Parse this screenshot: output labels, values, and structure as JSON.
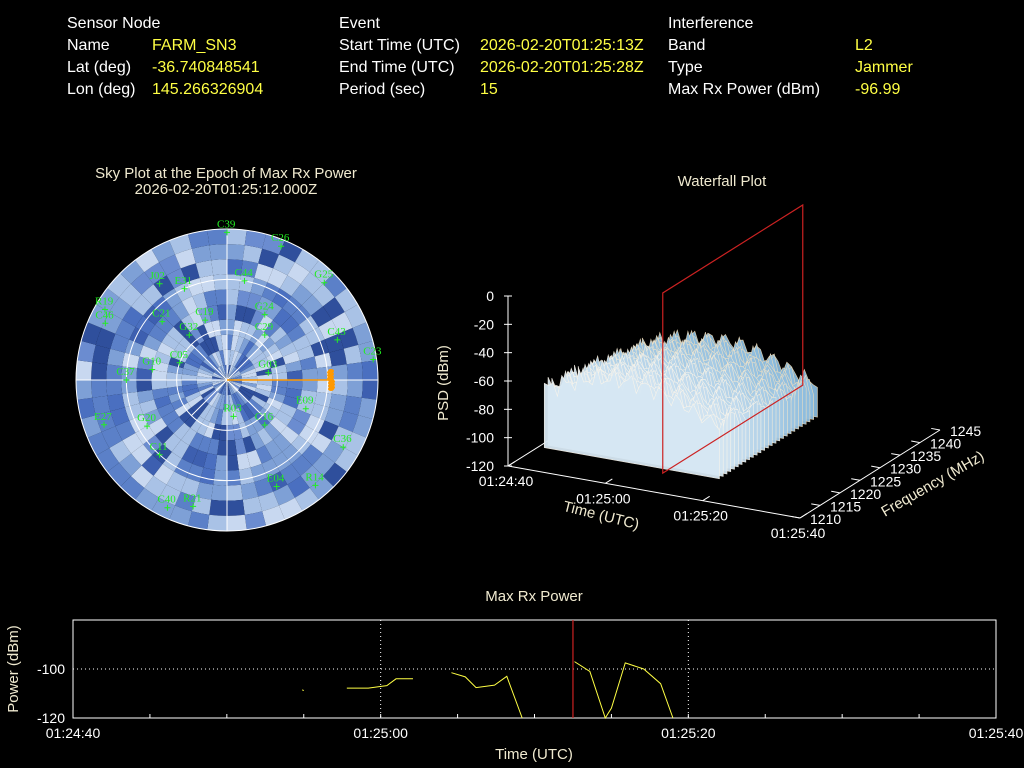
{
  "sensor": {
    "header": "Sensor Node",
    "name_label": "Name",
    "name": "FARM_SN3",
    "lat_label": "Lat (deg)",
    "lat": "-36.740848541",
    "lon_label": "Lon (deg)",
    "lon": "145.266326904"
  },
  "event": {
    "header": "Event",
    "start_label": "Start Time (UTC)",
    "start": "2026-02-20T01:25:13Z",
    "end_label": "End Time (UTC)",
    "end": "2026-02-20T01:25:28Z",
    "period_label": "Period (sec)",
    "period": "15"
  },
  "interference": {
    "header": "Interference",
    "band_label": "Band",
    "band": "L2",
    "type_label": "Type",
    "type": "Jammer",
    "power_label": "Max Rx Power (dBm)",
    "power": "-96.99"
  },
  "colors": {
    "value": "#ffff44",
    "satellite": "#22ee22",
    "marker": "#cc2222",
    "power_line": "#ffff44",
    "jammer": "#ff9900"
  },
  "chart_data": [
    {
      "type": "scatter",
      "title": "Sky Plot at the Epoch of Max Rx Power",
      "subtitle": "2026-02-20T01:25:12.000Z",
      "satellites": [
        {
          "id": "C39",
          "az": 0,
          "el": 2
        },
        {
          "id": "C26",
          "az": 22,
          "el": 4
        },
        {
          "id": "G25",
          "az": 45,
          "el": 8
        },
        {
          "id": "C23",
          "az": 82,
          "el": 2
        },
        {
          "id": "C43",
          "az": 70,
          "el": 20
        },
        {
          "id": "C36",
          "az": 120,
          "el": 10
        },
        {
          "id": "R14",
          "az": 140,
          "el": 8
        },
        {
          "id": "E04",
          "az": 155,
          "el": 20
        },
        {
          "id": "R21",
          "az": 195,
          "el": 12
        },
        {
          "id": "C40",
          "az": 205,
          "el": 6
        },
        {
          "id": "C11",
          "az": 222,
          "el": 30
        },
        {
          "id": "G20",
          "az": 240,
          "el": 35
        },
        {
          "id": "E27",
          "az": 250,
          "el": 12
        },
        {
          "id": "C37",
          "az": 270,
          "el": 30
        },
        {
          "id": "G10",
          "az": 278,
          "el": 45
        },
        {
          "id": "C46",
          "az": 295,
          "el": 10
        },
        {
          "id": "R19",
          "az": 300,
          "el": 6
        },
        {
          "id": "C21",
          "az": 312,
          "el": 38
        },
        {
          "id": "J02",
          "az": 325,
          "el": 20
        },
        {
          "id": "E31",
          "az": 335,
          "el": 30
        },
        {
          "id": "C44",
          "az": 10,
          "el": 30
        },
        {
          "id": "G24",
          "az": 30,
          "el": 45
        },
        {
          "id": "C29",
          "az": 40,
          "el": 55
        },
        {
          "id": "G03",
          "az": 80,
          "el": 65
        },
        {
          "id": "E09",
          "az": 110,
          "el": 40
        },
        {
          "id": "C16",
          "az": 140,
          "el": 55
        },
        {
          "id": "R03",
          "az": 170,
          "el": 68
        },
        {
          "id": "C05",
          "az": 290,
          "el": 60
        },
        {
          "id": "G32",
          "az": 320,
          "el": 55
        },
        {
          "id": "C19",
          "az": 340,
          "el": 52
        }
      ],
      "jammer_azimuth": 90,
      "jammer_elevation": 28
    },
    {
      "type": "area",
      "title": "Waterfall Plot",
      "xlabel": "Time (UTC)",
      "ylabel": "Frequency (MHz)",
      "zlabel": "PSD (dBm)",
      "x_ticks": [
        "01:24:40",
        "01:25:00",
        "01:25:20",
        "01:25:40"
      ],
      "y_ticks": [
        "1210",
        "1215",
        "1220",
        "1225",
        "1230",
        "1235",
        "1240",
        "1245"
      ],
      "z_ticks": [
        "0",
        "-20",
        "-40",
        "-60",
        "-80",
        "-100",
        "-120"
      ],
      "zlim": [
        -120,
        0
      ],
      "signal_start_sec": 4,
      "signal_end_sec": 40,
      "peak_psd": -55,
      "floor_psd": -120,
      "marker_sec": 12
    },
    {
      "type": "line",
      "title": "Max Rx Power",
      "xlabel": "Time (UTC)",
      "ylabel": "Power (dBm)",
      "xlim": [
        0,
        60
      ],
      "ylim": [
        -120,
        -80
      ],
      "x_ticks": [
        "01:24:40",
        "01:25:00",
        "01:25:20",
        "01:25:40"
      ],
      "y_ticks": [
        "-100",
        "-120"
      ],
      "grid": true,
      "segments": [
        [
          [
            14.9,
            -108.5
          ],
          [
            15.0,
            -108.8
          ]
        ],
        [
          [
            17.8,
            -107.8
          ],
          [
            19.2,
            -107.8
          ],
          [
            20.4,
            -106.8
          ],
          [
            21.0,
            -104.0
          ],
          [
            22.1,
            -104.0
          ]
        ],
        [
          [
            24.6,
            -101.5
          ],
          [
            25.5,
            -103.2
          ],
          [
            26.2,
            -107.6
          ],
          [
            27.4,
            -106.6
          ],
          [
            28.2,
            -103.0
          ],
          [
            29.2,
            -120.0
          ]
        ],
        [
          [
            32.6,
            -96.99
          ],
          [
            33.6,
            -101.0
          ],
          [
            34.6,
            -120.0
          ],
          [
            35.0,
            -116.0
          ],
          [
            35.9,
            -97.5
          ],
          [
            37.1,
            -100.0
          ],
          [
            38.2,
            -106.0
          ],
          [
            39.0,
            -120.0
          ]
        ]
      ],
      "marker_x": 32.5
    }
  ]
}
